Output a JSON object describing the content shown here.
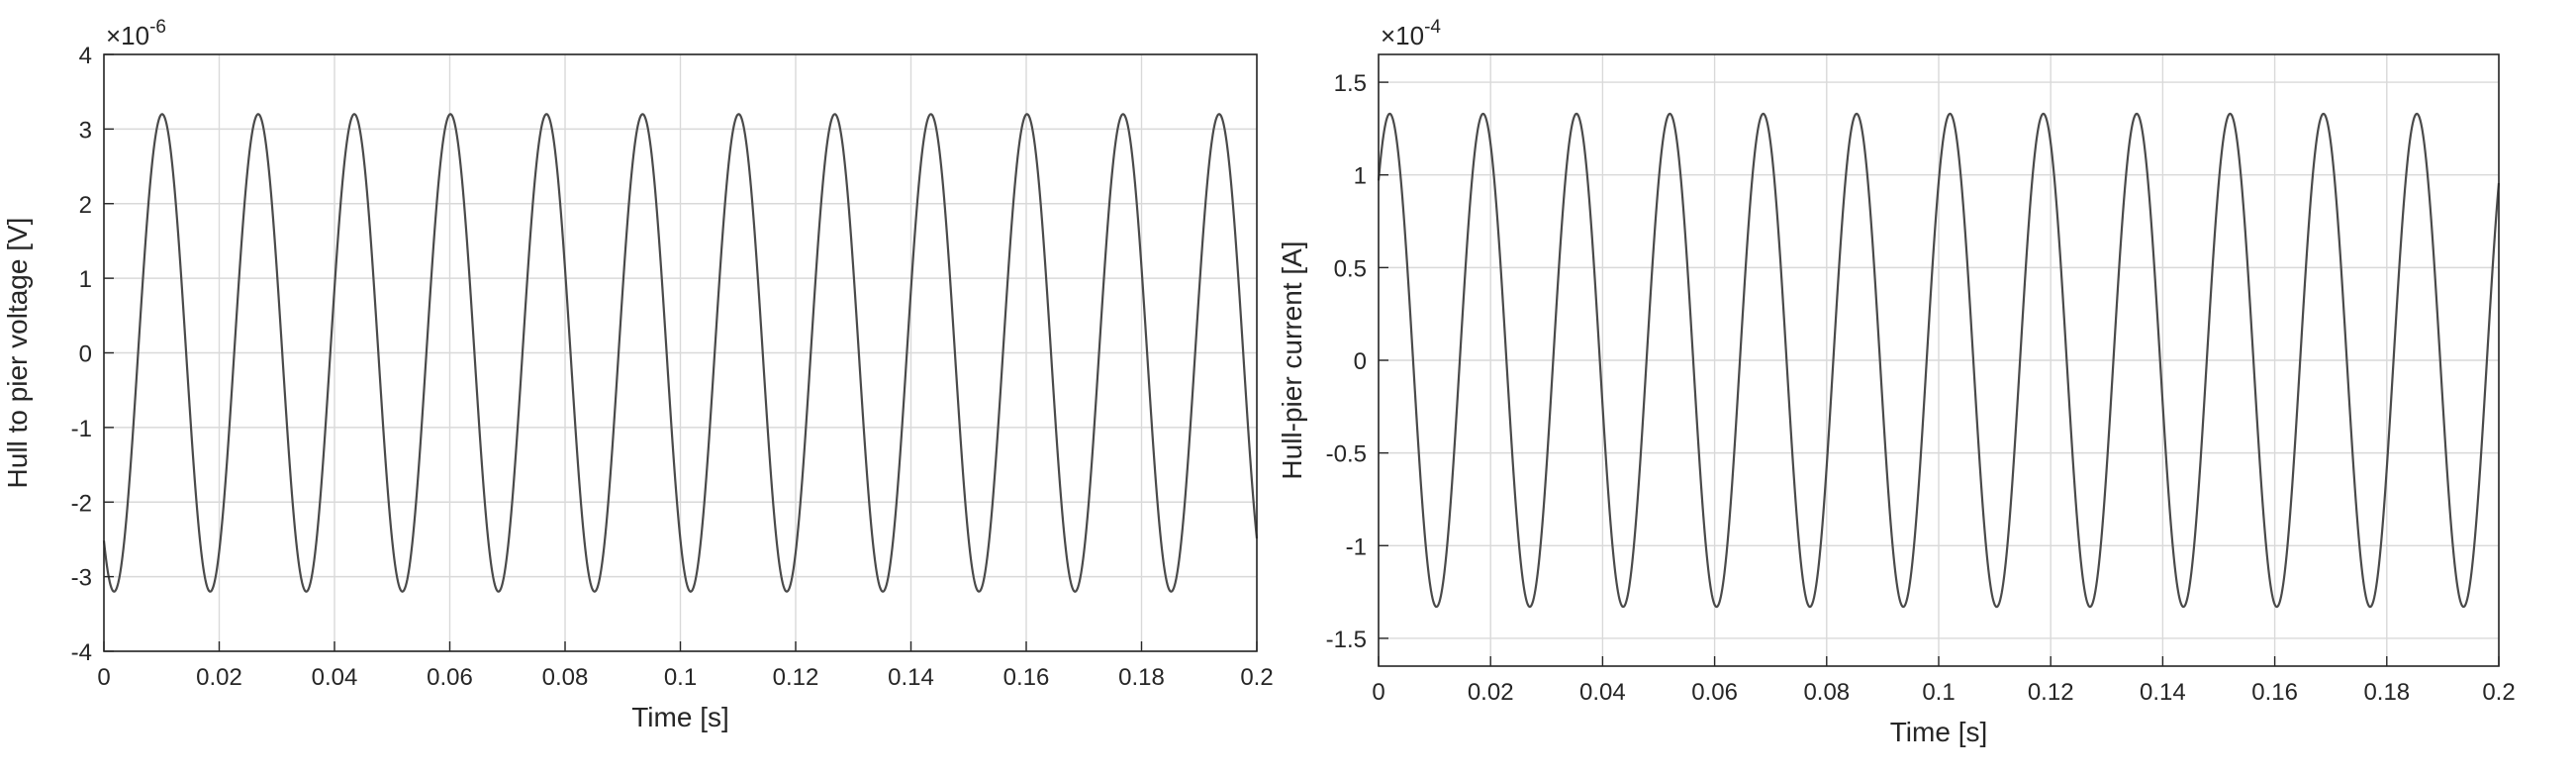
{
  "chart_data": [
    {
      "type": "line",
      "title": "",
      "xlabel": "Time [s]",
      "ylabel": "Hull to pier voltage [V]",
      "y_exponent_label": "×10",
      "y_exponent_power": "-6",
      "xlim": [
        0,
        0.2
      ],
      "ylim": [
        -4,
        4
      ],
      "xticks": [
        0,
        0.02,
        0.04,
        0.06,
        0.08,
        0.1,
        0.12,
        0.14,
        0.16,
        0.18,
        0.2
      ],
      "xtick_labels": [
        "0",
        "0.02",
        "0.04",
        "0.06",
        "0.08",
        "0.1",
        "0.12",
        "0.14",
        "0.16",
        "0.18",
        "0.2"
      ],
      "yticks": [
        -4,
        -3,
        -2,
        -1,
        0,
        1,
        2,
        3,
        4
      ],
      "ytick_labels": [
        "-4",
        "-3",
        "-2",
        "-1",
        "0",
        "1",
        "2",
        "3",
        "4"
      ],
      "grid": true,
      "series": [
        {
          "color": "#4a4a4a",
          "function": "sine",
          "amplitude": 3.2,
          "period_s": 0.01667,
          "first_peak_at_s": 0.0101
        }
      ]
    },
    {
      "type": "line",
      "title": "",
      "xlabel": "Time [s]",
      "ylabel": "Hull-pier current [A]",
      "y_exponent_label": "×10",
      "y_exponent_power": "-4",
      "xlim": [
        0,
        0.2
      ],
      "ylim": [
        -1.65,
        1.65
      ],
      "xticks": [
        0,
        0.02,
        0.04,
        0.06,
        0.08,
        0.1,
        0.12,
        0.14,
        0.16,
        0.18,
        0.2
      ],
      "xtick_labels": [
        "0",
        "0.02",
        "0.04",
        "0.06",
        "0.08",
        "0.1",
        "0.12",
        "0.14",
        "0.16",
        "0.18",
        "0.2"
      ],
      "yticks": [
        -1.5,
        -1,
        -0.5,
        0,
        0.5,
        1,
        1.5
      ],
      "ytick_labels": [
        "-1.5",
        "-1",
        "-0.5",
        "0",
        "0.5",
        "1",
        "1.5"
      ],
      "grid": true,
      "series": [
        {
          "color": "#2f2f2f",
          "function": "sine",
          "amplitude": 1.33,
          "period_s": 0.01667,
          "first_peak_at_s": 0.002
        }
      ]
    }
  ]
}
